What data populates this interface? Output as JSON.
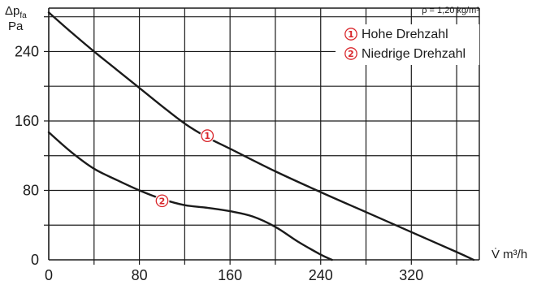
{
  "chart_data": {
    "type": "line",
    "ylabel": "Δp",
    "ylabel_sub": "fa",
    "yunit": "Pa",
    "xlabel": "V̇ m³/h",
    "density_note": "ρ = 1,20 kg/m³",
    "xlim": [
      0,
      380
    ],
    "ylim": [
      0,
      290
    ],
    "x_ticks": [
      0,
      80,
      160,
      240,
      320
    ],
    "y_ticks": [
      0,
      80,
      160,
      240
    ],
    "grid": true,
    "legend_position": "top-right",
    "colors": {
      "line": "#1a1a1a",
      "marker": "#d9262b",
      "grid": "#1a1a1a"
    },
    "series": [
      {
        "name": "Hohe Drehzahl",
        "marker": "1",
        "marker_at": [
          140,
          143
        ],
        "points": [
          [
            0,
            285
          ],
          [
            20,
            262
          ],
          [
            40,
            240
          ],
          [
            60,
            219
          ],
          [
            80,
            198
          ],
          [
            100,
            177
          ],
          [
            120,
            157
          ],
          [
            140,
            141
          ],
          [
            160,
            128
          ],
          [
            200,
            102
          ],
          [
            240,
            78
          ],
          [
            280,
            55
          ],
          [
            320,
            32
          ],
          [
            360,
            9
          ],
          [
            375,
            0
          ]
        ]
      },
      {
        "name": "Niedrige Drehzahl",
        "marker": "2",
        "marker_at": [
          100,
          68
        ],
        "points": [
          [
            0,
            147
          ],
          [
            20,
            124
          ],
          [
            40,
            105
          ],
          [
            60,
            92
          ],
          [
            80,
            80
          ],
          [
            100,
            70
          ],
          [
            120,
            63
          ],
          [
            140,
            60
          ],
          [
            160,
            56
          ],
          [
            180,
            50
          ],
          [
            200,
            38
          ],
          [
            220,
            21
          ],
          [
            240,
            6
          ],
          [
            250,
            0
          ]
        ]
      }
    ]
  }
}
